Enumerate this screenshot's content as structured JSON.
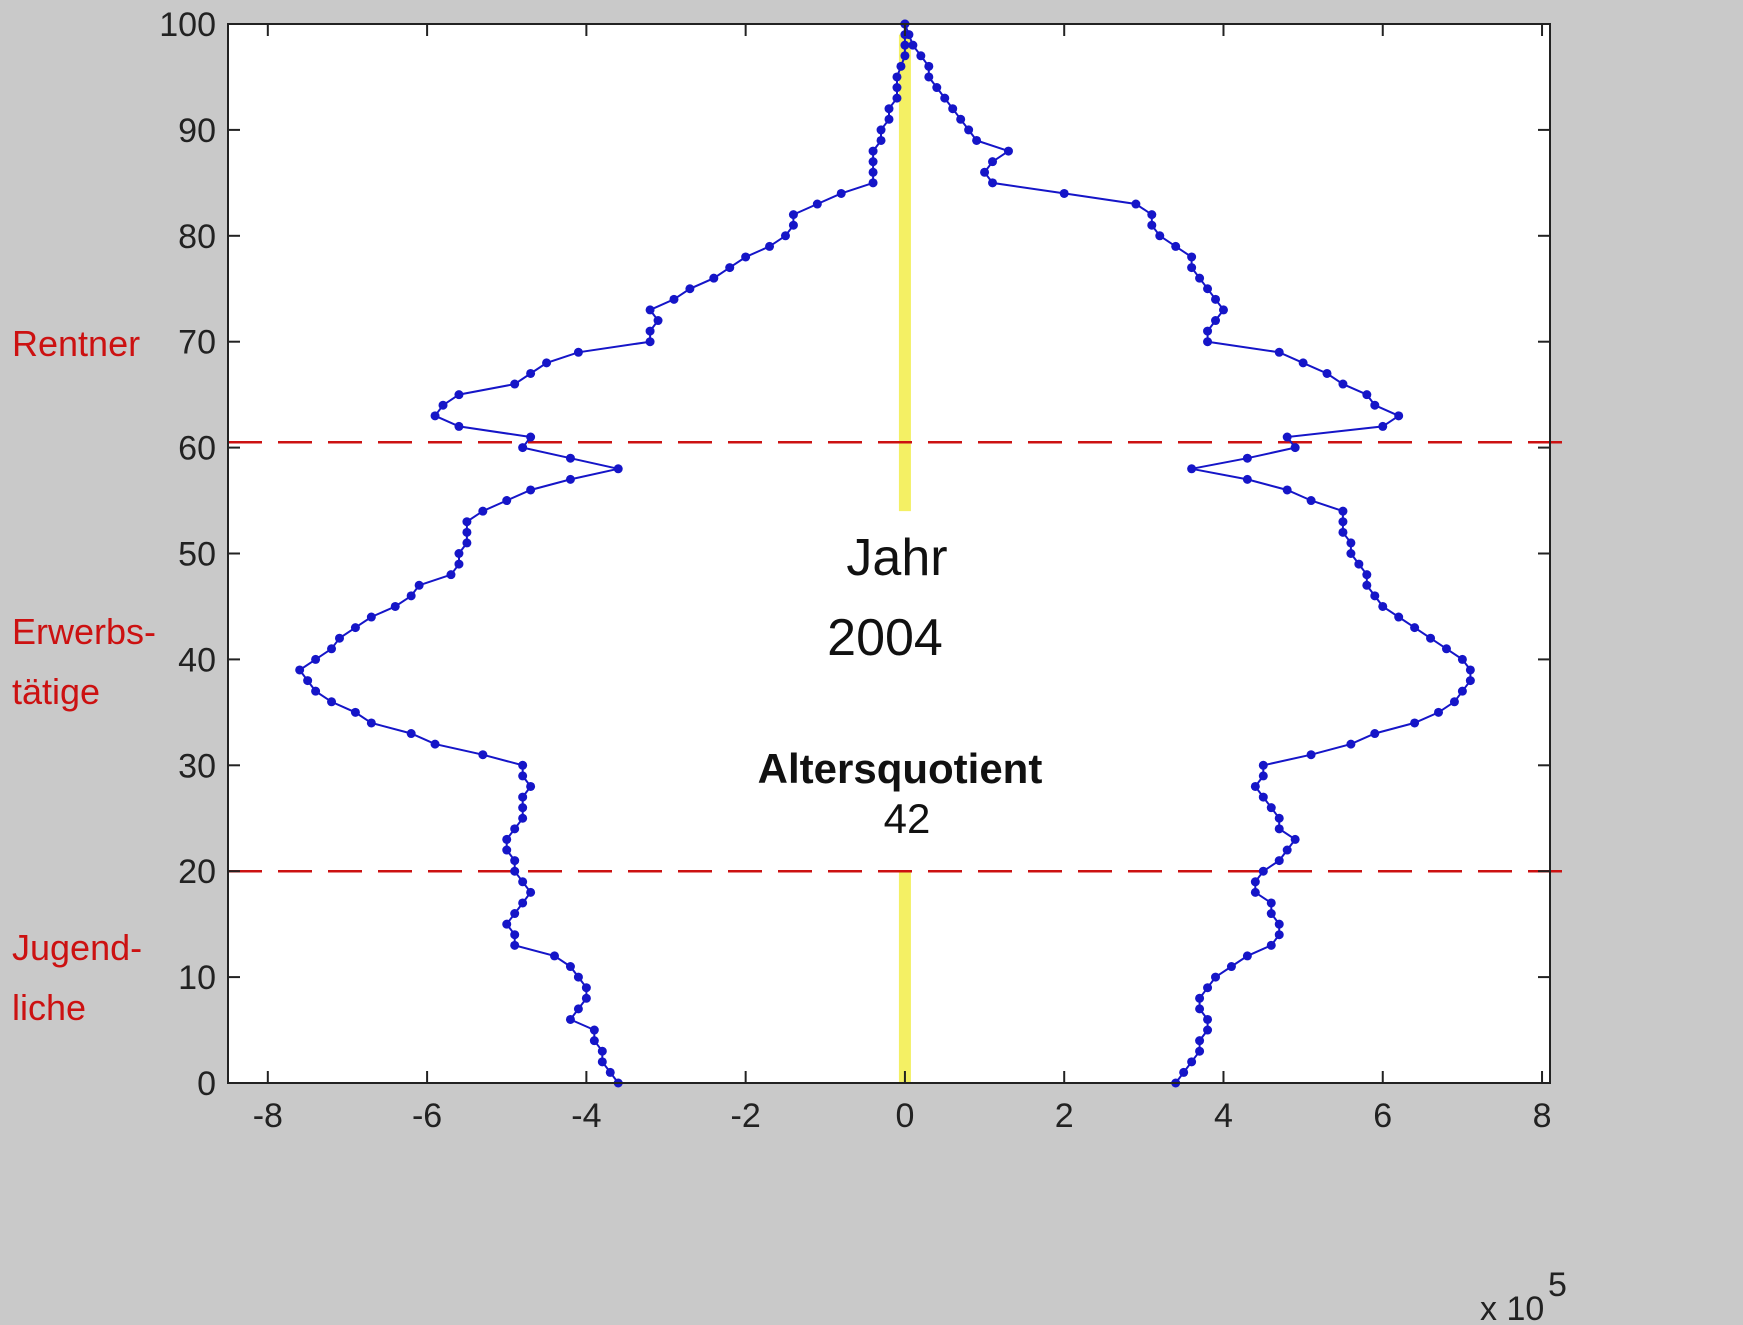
{
  "labels": {
    "pensioners": "Rentner",
    "workers_line1": "Erwerbs-",
    "workers_line2": "tätige",
    "youth_line1": "Jugend-",
    "youth_line2": "liche"
  },
  "annotations": {
    "year_label": "Jahr",
    "year_value": "2004",
    "ratio_label": "Altersquotient",
    "ratio_value": "42"
  },
  "colors": {
    "figure_background": "#c9c9c9",
    "plot_background": "#ffffff",
    "series": "#1515c8",
    "reference_lines": "#cc1111",
    "center_band": "#f4f064",
    "side_labels": "#cc1111"
  },
  "chart_data": {
    "type": "line",
    "orientation": "horizontal",
    "title": "",
    "xlabel": "",
    "ylabel": "",
    "xlim": [
      -8.5,
      8.1
    ],
    "ylim": [
      0,
      100
    ],
    "x_multiplier_label": "x 10",
    "x_multiplier_exponent": "5",
    "xticks": [
      -8,
      -6,
      -4,
      -2,
      0,
      2,
      4,
      6,
      8
    ],
    "yticks": [
      0,
      10,
      20,
      30,
      40,
      50,
      60,
      70,
      80,
      90,
      100
    ],
    "grid": false,
    "reference_lines_age": [
      60.5,
      20
    ],
    "center_line_x": 0,
    "series": [
      {
        "side": "left",
        "age": [
          0,
          1,
          2,
          3,
          4,
          5,
          6,
          7,
          8,
          9,
          10,
          11,
          12,
          13,
          14,
          15,
          16,
          17,
          18,
          19,
          20,
          21,
          22,
          23,
          24,
          25,
          26,
          27,
          28,
          29,
          30,
          31,
          32,
          33,
          34,
          35,
          36,
          37,
          38,
          39,
          40,
          41,
          42,
          43,
          44,
          45,
          46,
          47,
          48,
          49,
          50,
          51,
          52,
          53,
          54,
          55,
          56,
          57,
          58,
          59,
          60,
          61,
          62,
          63,
          64,
          65,
          66,
          67,
          68,
          69,
          70,
          71,
          72,
          73,
          74,
          75,
          76,
          77,
          78,
          79,
          80,
          81,
          82,
          83,
          84,
          85,
          86,
          87,
          88,
          89,
          90,
          91,
          92,
          93,
          94,
          95,
          96,
          97,
          98,
          99,
          100
        ],
        "value": [
          -3.6,
          -3.7,
          -3.8,
          -3.8,
          -3.9,
          -3.9,
          -4.2,
          -4.1,
          -4.0,
          -4.0,
          -4.1,
          -4.2,
          -4.4,
          -4.9,
          -4.9,
          -5.0,
          -4.9,
          -4.8,
          -4.7,
          -4.8,
          -4.9,
          -4.9,
          -5.0,
          -5.0,
          -4.9,
          -4.8,
          -4.8,
          -4.8,
          -4.7,
          -4.8,
          -4.8,
          -5.3,
          -5.9,
          -6.2,
          -6.7,
          -6.9,
          -7.2,
          -7.4,
          -7.5,
          -7.6,
          -7.4,
          -7.2,
          -7.1,
          -6.9,
          -6.7,
          -6.4,
          -6.2,
          -6.1,
          -5.7,
          -5.6,
          -5.6,
          -5.5,
          -5.5,
          -5.5,
          -5.3,
          -5.0,
          -4.7,
          -4.2,
          -3.6,
          -4.2,
          -4.8,
          -4.7,
          -5.6,
          -5.9,
          -5.8,
          -5.6,
          -4.9,
          -4.7,
          -4.5,
          -4.1,
          -3.2,
          -3.2,
          -3.1,
          -3.2,
          -2.9,
          -2.7,
          -2.4,
          -2.2,
          -2.0,
          -1.7,
          -1.5,
          -1.4,
          -1.4,
          -1.1,
          -0.8,
          -0.4,
          -0.4,
          -0.4,
          -0.4,
          -0.3,
          -0.3,
          -0.2,
          -0.2,
          -0.1,
          -0.1,
          -0.1,
          -0.05,
          0,
          0,
          0,
          0
        ]
      },
      {
        "side": "right",
        "age": [
          0,
          1,
          2,
          3,
          4,
          5,
          6,
          7,
          8,
          9,
          10,
          11,
          12,
          13,
          14,
          15,
          16,
          17,
          18,
          19,
          20,
          21,
          22,
          23,
          24,
          25,
          26,
          27,
          28,
          29,
          30,
          31,
          32,
          33,
          34,
          35,
          36,
          37,
          38,
          39,
          40,
          41,
          42,
          43,
          44,
          45,
          46,
          47,
          48,
          49,
          50,
          51,
          52,
          53,
          54,
          55,
          56,
          57,
          58,
          59,
          60,
          61,
          62,
          63,
          64,
          65,
          66,
          67,
          68,
          69,
          70,
          71,
          72,
          73,
          74,
          75,
          76,
          77,
          78,
          79,
          80,
          81,
          82,
          83,
          84,
          85,
          86,
          87,
          88,
          89,
          90,
          91,
          92,
          93,
          94,
          95,
          96,
          97,
          98,
          99,
          100
        ],
        "value": [
          3.4,
          3.5,
          3.6,
          3.7,
          3.7,
          3.8,
          3.8,
          3.7,
          3.7,
          3.8,
          3.9,
          4.1,
          4.3,
          4.6,
          4.7,
          4.7,
          4.6,
          4.6,
          4.4,
          4.4,
          4.5,
          4.7,
          4.8,
          4.9,
          4.7,
          4.7,
          4.6,
          4.5,
          4.4,
          4.5,
          4.5,
          5.1,
          5.6,
          5.9,
          6.4,
          6.7,
          6.9,
          7.0,
          7.1,
          7.1,
          7.0,
          6.8,
          6.6,
          6.4,
          6.2,
          6.0,
          5.9,
          5.8,
          5.8,
          5.7,
          5.6,
          5.6,
          5.5,
          5.5,
          5.5,
          5.1,
          4.8,
          4.3,
          3.6,
          4.3,
          4.9,
          4.8,
          6.0,
          6.2,
          5.9,
          5.8,
          5.5,
          5.3,
          5.0,
          4.7,
          3.8,
          3.8,
          3.9,
          4.0,
          3.9,
          3.8,
          3.7,
          3.6,
          3.6,
          3.4,
          3.2,
          3.1,
          3.1,
          2.9,
          2.0,
          1.1,
          1.0,
          1.1,
          1.3,
          0.9,
          0.8,
          0.7,
          0.6,
          0.5,
          0.4,
          0.3,
          0.3,
          0.2,
          0.1,
          0.05,
          0
        ]
      }
    ]
  }
}
